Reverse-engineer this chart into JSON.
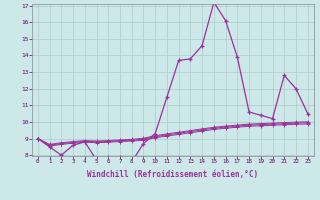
{
  "x": [
    0,
    1,
    2,
    3,
    4,
    5,
    6,
    7,
    8,
    9,
    10,
    11,
    12,
    13,
    14,
    15,
    16,
    17,
    18,
    19,
    20,
    21,
    22,
    23
  ],
  "y_windchill": [
    9.0,
    8.5,
    8.0,
    8.6,
    8.8,
    7.7,
    7.9,
    7.9,
    7.6,
    8.7,
    9.3,
    11.5,
    13.7,
    13.8,
    14.6,
    17.2,
    16.1,
    13.9,
    10.6,
    10.4,
    10.2,
    12.8,
    12.0,
    10.5
  ],
  "y_trend1": [
    9.0,
    8.55,
    8.65,
    8.72,
    8.78,
    8.75,
    8.78,
    8.82,
    8.85,
    8.9,
    9.05,
    9.15,
    9.25,
    9.35,
    9.45,
    9.55,
    9.62,
    9.68,
    9.74,
    9.77,
    9.8,
    9.83,
    9.86,
    9.88
  ],
  "y_trend2": [
    9.0,
    8.6,
    8.7,
    8.77,
    8.83,
    8.8,
    8.83,
    8.87,
    8.9,
    8.96,
    9.11,
    9.22,
    9.32,
    9.42,
    9.52,
    9.62,
    9.69,
    9.75,
    9.81,
    9.84,
    9.87,
    9.9,
    9.93,
    9.95
  ],
  "y_trend3": [
    9.0,
    8.65,
    8.75,
    8.82,
    8.88,
    8.85,
    8.88,
    8.92,
    8.95,
    9.02,
    9.17,
    9.28,
    9.38,
    9.48,
    9.58,
    9.68,
    9.75,
    9.81,
    9.87,
    9.9,
    9.93,
    9.96,
    9.99,
    10.01
  ],
  "line_color": "#993399",
  "bg_color": "#cce8e8",
  "grid_color": "#b0c8c8",
  "xlabel": "Windchill (Refroidissement éolien,°C)",
  "ylim": [
    8,
    17
  ],
  "xlim": [
    -0.5,
    23.5
  ],
  "yticks": [
    8,
    9,
    10,
    11,
    12,
    13,
    14,
    15,
    16,
    17
  ],
  "xticks": [
    0,
    1,
    2,
    3,
    4,
    5,
    6,
    7,
    8,
    9,
    10,
    11,
    12,
    13,
    14,
    15,
    16,
    17,
    18,
    19,
    20,
    21,
    22,
    23
  ]
}
